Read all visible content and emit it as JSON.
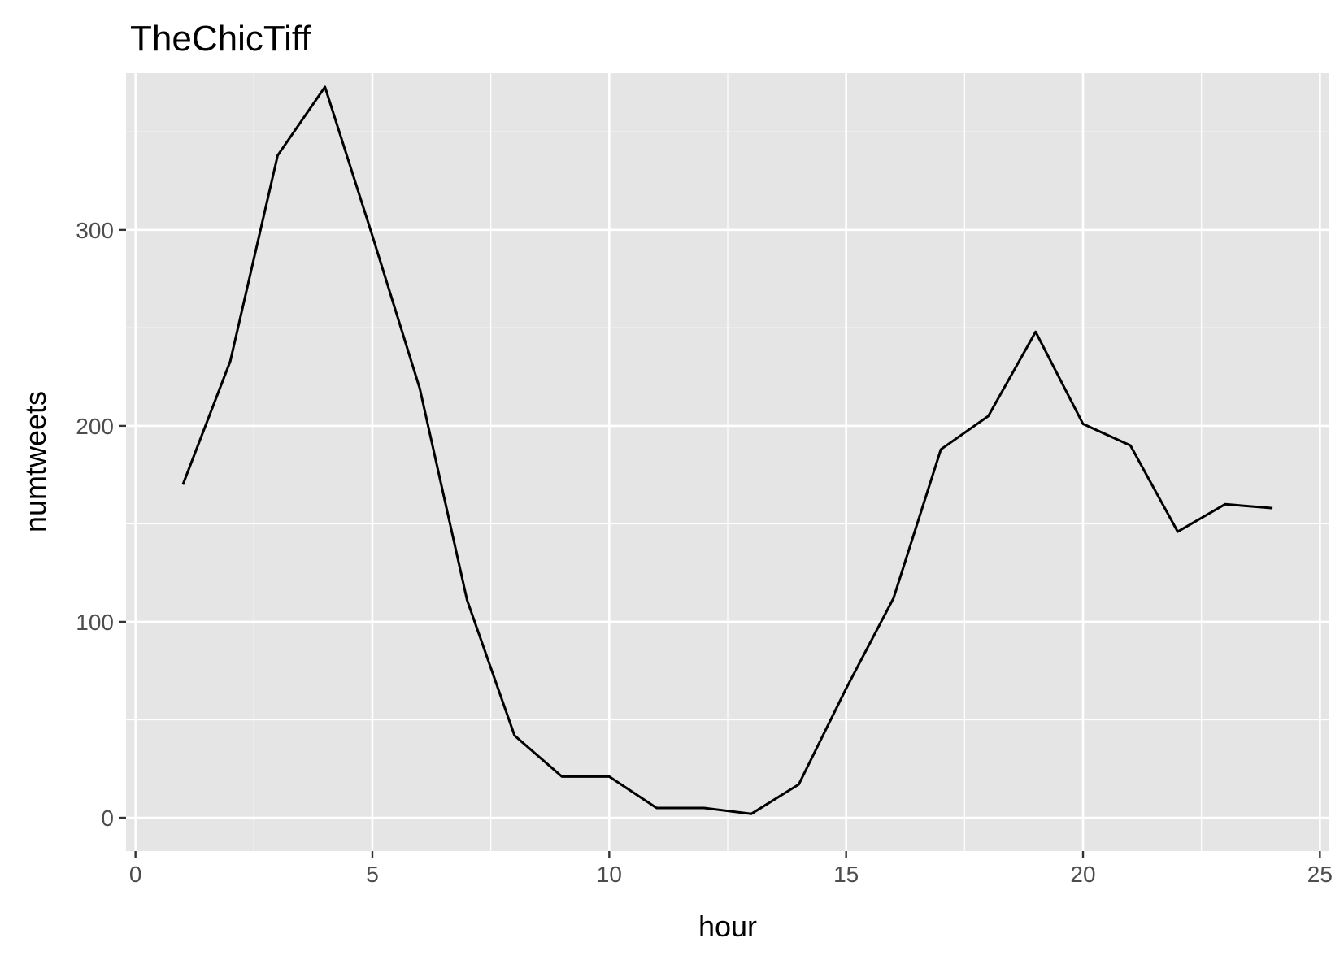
{
  "chart_data": {
    "type": "line",
    "title": "TheChicTiff",
    "xlabel": "hour",
    "ylabel": "numtweets",
    "xlim": [
      -0.2,
      25.2
    ],
    "ylim": [
      -17,
      380
    ],
    "x_ticks": [
      0,
      5,
      10,
      15,
      20,
      25
    ],
    "y_ticks": [
      0,
      100,
      200,
      300
    ],
    "grid": true,
    "legend": "none",
    "colors": {
      "panel": "#e5e5e5",
      "grid": "#ffffff",
      "line": "#000000",
      "tick_text": "#4d4d4d",
      "tick_mark": "#333333"
    },
    "series": [
      {
        "x": [
          1,
          2,
          3,
          4,
          5,
          6,
          7,
          8,
          9,
          10,
          11,
          12,
          13,
          14,
          15,
          16,
          17,
          18,
          19,
          20,
          21,
          22,
          23,
          24
        ],
        "values": [
          170,
          233,
          338,
          373,
          297,
          219,
          111,
          42,
          21,
          21,
          5,
          5,
          2,
          17,
          66,
          112,
          188,
          205,
          248,
          201,
          190,
          146,
          160,
          158
        ]
      }
    ]
  }
}
